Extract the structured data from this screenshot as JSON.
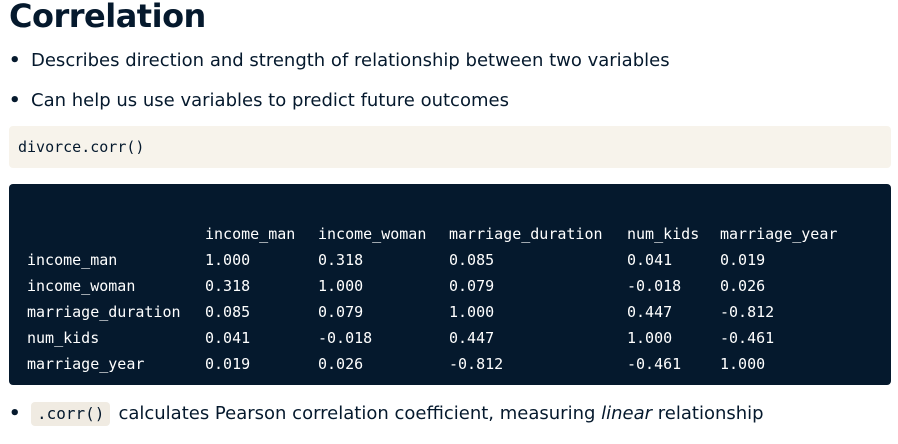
{
  "title": "Correlation",
  "bullets": [
    "Describes direction and strength of relationship between two variables",
    "Can help us use variables to predict future outcomes"
  ],
  "code_input": "divorce.corr()",
  "table": {
    "columns": [
      "income_man",
      "income_woman",
      "marriage_duration",
      "num_kids",
      "marriage_year"
    ],
    "rows": [
      {
        "label": "income_man",
        "values": [
          "1.000",
          "0.318",
          "0.085",
          "0.041",
          "0.019"
        ]
      },
      {
        "label": "income_woman",
        "values": [
          "0.318",
          "1.000",
          "0.079",
          "-0.018",
          "0.026"
        ]
      },
      {
        "label": "marriage_duration",
        "values": [
          "0.085",
          "0.079",
          "1.000",
          "0.447",
          "-0.812"
        ]
      },
      {
        "label": "num_kids",
        "values": [
          "0.041",
          "-0.018",
          "0.447",
          "1.000",
          "-0.461"
        ]
      },
      {
        "label": "marriage_year",
        "values": [
          "0.019",
          "0.026",
          "-0.812",
          "-0.461",
          "1.000"
        ]
      }
    ]
  },
  "note": {
    "code": ".corr()",
    "text_before": "calculates Pearson correlation coefficient, measuring",
    "emphasis": "linear",
    "text_after": "relationship"
  },
  "colors": {
    "text": "#05192d",
    "code_input_bg": "#f7f3eb",
    "code_output_bg": "#05192d",
    "code_output_text": "#ffffff"
  }
}
